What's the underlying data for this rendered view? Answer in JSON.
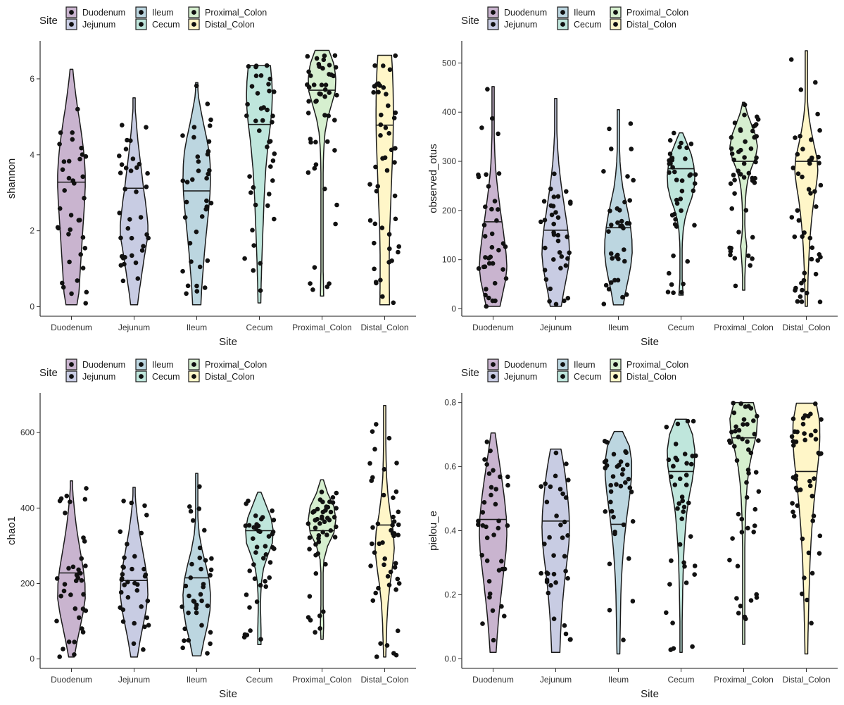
{
  "legend": {
    "title": "Site",
    "entries": [
      {
        "label": "Duodenum",
        "color": "#c9b4cf"
      },
      {
        "label": "Jejunum",
        "color": "#c8cce3"
      },
      {
        "label": "Ileum",
        "color": "#bcd6e0"
      },
      {
        "label": "Cecum",
        "color": "#bfe6dc"
      },
      {
        "label": "Proximal_Colon",
        "color": "#d6efcf"
      },
      {
        "label": "Distal_Colon",
        "color": "#fff6c8"
      }
    ]
  },
  "chart_data": [
    {
      "type": "violin",
      "xlabel": "Site",
      "ylabel": "shannon",
      "categories": [
        "Duodenum",
        "Jejunum",
        "Ileum",
        "Cecum",
        "Proximal_Colon",
        "Distal_Colon"
      ],
      "ylim": [
        -0.25,
        7.0
      ],
      "yticks": [
        0,
        2,
        4,
        6
      ],
      "medians": [
        3.28,
        3.12,
        3.05,
        4.8,
        5.7,
        4.78
      ],
      "ranges": [
        [
          0.05,
          6.25
        ],
        [
          0.05,
          5.5
        ],
        [
          0.05,
          5.9
        ],
        [
          0.1,
          6.35
        ],
        [
          0.28,
          6.75
        ],
        [
          0.05,
          6.62
        ]
      ],
      "grid": false,
      "legend_position": "top"
    },
    {
      "type": "violin",
      "xlabel": "Site",
      "ylabel": "observed_otus",
      "categories": [
        "Duodenum",
        "Jejunum",
        "Ileum",
        "Cecum",
        "Proximal_Colon",
        "Distal_Colon"
      ],
      "ylim": [
        -15,
        545
      ],
      "yticks": [
        0,
        100,
        200,
        300,
        400,
        500
      ],
      "medians": [
        177,
        160,
        165,
        285,
        300,
        300
      ],
      "ranges": [
        [
          5,
          452
        ],
        [
          5,
          428
        ],
        [
          8,
          405
        ],
        [
          28,
          358
        ],
        [
          38,
          420
        ],
        [
          5,
          525
        ]
      ],
      "grid": false,
      "legend_position": "top"
    },
    {
      "type": "violin",
      "xlabel": "Site",
      "ylabel": "chao1",
      "categories": [
        "Duodenum",
        "Jejunum",
        "Ileum",
        "Cecum",
        "Proximal_Colon",
        "Distal_Colon"
      ],
      "ylim": [
        -25,
        705
      ],
      "yticks": [
        0,
        200,
        400,
        600
      ],
      "medians": [
        228,
        208,
        215,
        340,
        340,
        355
      ],
      "ranges": [
        [
          5,
          472
        ],
        [
          5,
          455
        ],
        [
          8,
          492
        ],
        [
          38,
          442
        ],
        [
          52,
          475
        ],
        [
          5,
          672
        ]
      ],
      "grid": false,
      "legend_position": "top"
    },
    {
      "type": "violin",
      "xlabel": "Site",
      "ylabel": "pielou_e",
      "categories": [
        "Duodenum",
        "Jejunum",
        "Ileum",
        "Cecum",
        "Proximal_Colon",
        "Distal_Colon"
      ],
      "ylim": [
        -0.03,
        0.83
      ],
      "yticks": [
        0.0,
        0.2,
        0.4,
        0.6,
        0.8
      ],
      "medians": [
        0.435,
        0.43,
        0.42,
        0.585,
        0.69,
        0.585
      ],
      "ranges": [
        [
          0.02,
          0.705
        ],
        [
          0.02,
          0.655
        ],
        [
          0.015,
          0.71
        ],
        [
          0.02,
          0.748
        ],
        [
          0.045,
          0.8
        ],
        [
          0.015,
          0.798
        ]
      ],
      "grid": false,
      "legend_position": "top"
    }
  ]
}
